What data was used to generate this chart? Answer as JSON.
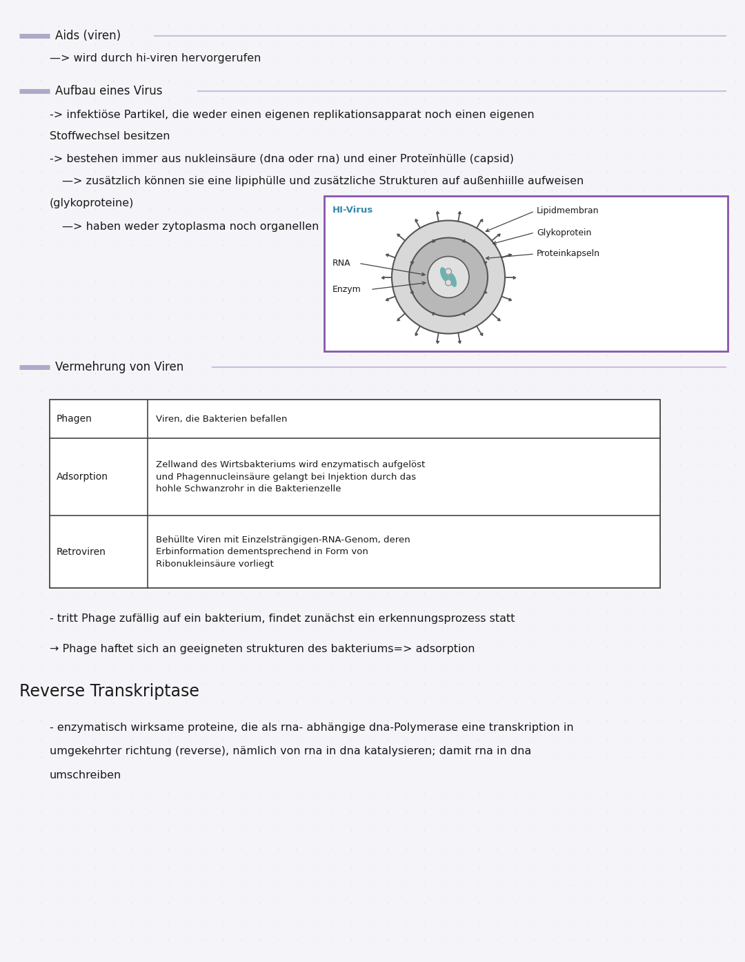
{
  "bg_color": "#f5f4f8",
  "dot_color": "#c8c4d4",
  "text_color": "#1a1a1a",
  "title1": "Aids (viren)",
  "title2": "Aufbau eines Virus",
  "title3": "Vermehrung von Viren",
  "title4": "Reverse Transkriptase",
  "purple_light": "#c8bede",
  "purple_bar": "#b0a8c8",
  "table_border": "#555555",
  "virus_box_border": "#8855aa",
  "hi_virus_color": "#3388aa",
  "arrow_color": "#444444"
}
